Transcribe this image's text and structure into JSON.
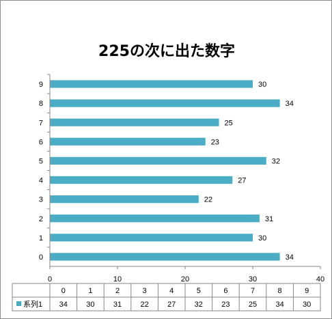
{
  "chart_data": {
    "type": "bar",
    "orientation": "horizontal",
    "title": "225の次に出た数字",
    "categories": [
      "0",
      "1",
      "2",
      "3",
      "4",
      "5",
      "6",
      "7",
      "8",
      "9"
    ],
    "series": [
      {
        "name": "系列1",
        "values": [
          34,
          30,
          31,
          22,
          27,
          32,
          23,
          25,
          34,
          30
        ]
      }
    ],
    "xlim": [
      0,
      40
    ],
    "x_ticks": [
      0,
      10,
      20,
      30,
      40
    ],
    "data_labels": true,
    "data_table": true,
    "grid": false,
    "legend": "data-table",
    "colors": {
      "bar": "#4bacc6",
      "axis": "#868686",
      "border": "#8c8c8c"
    }
  }
}
